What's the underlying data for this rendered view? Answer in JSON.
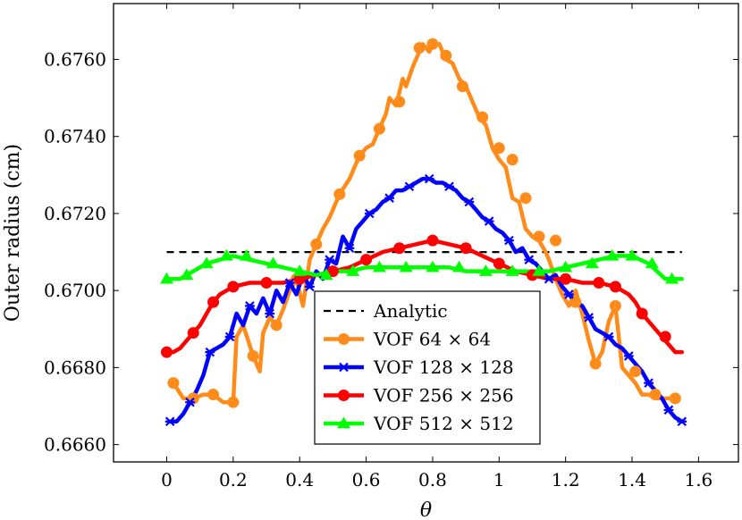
{
  "chart_data": {
    "type": "line",
    "title": "",
    "xlabel": "θ",
    "ylabel": "Outer radius (cm)",
    "xlim": [
      -0.16,
      1.72
    ],
    "ylim": [
      0.66555,
      0.67745
    ],
    "x_ticks": [
      0,
      0.2,
      0.4,
      0.6,
      0.8,
      1,
      1.2,
      1.4,
      1.6
    ],
    "x_tick_labels": [
      "0",
      "0.2",
      "0.4",
      "0.6",
      "0.8",
      "1",
      "1.2",
      "1.4",
      "1.6"
    ],
    "y_ticks": [
      0.666,
      0.668,
      0.67,
      0.672,
      0.674,
      0.676
    ],
    "y_tick_labels": [
      "0.6660",
      "0.6680",
      "0.6700",
      "0.6720",
      "0.6740",
      "0.6760"
    ],
    "grid": false,
    "legend_position": "bottom-center",
    "series": [
      {
        "name": "Analytic",
        "color": "#000000",
        "style": "dashed",
        "marker": "none",
        "x": [
          0,
          1.55
        ],
        "y": [
          0.671,
          0.671
        ]
      },
      {
        "name": "VOF 64 × 64",
        "color": "#ff8c1a",
        "style": "solid",
        "marker": "circle",
        "x": [
          0.02,
          0.05,
          0.08,
          0.11,
          0.14,
          0.17,
          0.2,
          0.21,
          0.23,
          0.26,
          0.28,
          0.29,
          0.31,
          0.33,
          0.35,
          0.37,
          0.39,
          0.41,
          0.43,
          0.45,
          0.47,
          0.49,
          0.52,
          0.55,
          0.58,
          0.6,
          0.62,
          0.64,
          0.66,
          0.67,
          0.69,
          0.71,
          0.72,
          0.74,
          0.75,
          0.77,
          0.79,
          0.8,
          0.82,
          0.84,
          0.86,
          0.88,
          0.9,
          0.92,
          0.94,
          0.96,
          0.98,
          1.0,
          1.02,
          1.04,
          1.06,
          1.08,
          1.1,
          1.12,
          1.14,
          1.15,
          1.17,
          1.19,
          1.21,
          1.23,
          1.25,
          1.27,
          1.29,
          1.31,
          1.33,
          1.35,
          1.37,
          1.39,
          1.41,
          1.43,
          1.45,
          1.47,
          1.5,
          1.53
        ],
        "y": [
          0.6676,
          0.6672,
          0.6672,
          0.6673,
          0.6673,
          0.6671,
          0.6671,
          0.6688,
          0.6691,
          0.6683,
          0.6679,
          0.6689,
          0.6693,
          0.6691,
          0.6695,
          0.67,
          0.6703,
          0.6696,
          0.6708,
          0.6712,
          0.6716,
          0.6719,
          0.6725,
          0.6729,
          0.6735,
          0.6737,
          0.6738,
          0.6742,
          0.6746,
          0.675,
          0.6748,
          0.6755,
          0.6753,
          0.6758,
          0.676,
          0.6764,
          0.6762,
          0.6764,
          0.6764,
          0.676,
          0.6759,
          0.6755,
          0.6753,
          0.6749,
          0.6745,
          0.6743,
          0.6737,
          0.6734,
          0.6732,
          0.6724,
          0.6723,
          0.6716,
          0.6714,
          0.6713,
          0.671,
          0.6708,
          0.6703,
          0.6699,
          0.6696,
          0.67,
          0.6694,
          0.6687,
          0.6681,
          0.6684,
          0.6692,
          0.6696,
          0.668,
          0.6678,
          0.6676,
          0.6673,
          0.6673,
          0.6672,
          0.6672,
          0.6672
        ],
        "marker_x": [
          0.02,
          0.08,
          0.14,
          0.2,
          0.26,
          0.33,
          0.39,
          0.45,
          0.52,
          0.58,
          0.64,
          0.7,
          0.76,
          0.8,
          0.84,
          0.89,
          0.95,
          1.0,
          1.04,
          1.08,
          1.12,
          1.17,
          1.23,
          1.29,
          1.35,
          1.41,
          1.47,
          1.53
        ],
        "marker_y": [
          0.6676,
          0.6672,
          0.6673,
          0.6671,
          0.6683,
          0.6691,
          0.6703,
          0.6712,
          0.6725,
          0.6735,
          0.6742,
          0.6749,
          0.6763,
          0.6764,
          0.6761,
          0.6753,
          0.6745,
          0.6737,
          0.6734,
          0.6724,
          0.6714,
          0.6713,
          0.6697,
          0.6681,
          0.6696,
          0.6679,
          0.6673,
          0.6672
        ]
      },
      {
        "name": "VOF 128 × 128",
        "color": "#0000ff",
        "style": "solid",
        "marker": "star",
        "x": [
          0.01,
          0.03,
          0.05,
          0.07,
          0.09,
          0.11,
          0.13,
          0.15,
          0.17,
          0.19,
          0.21,
          0.23,
          0.25,
          0.27,
          0.29,
          0.31,
          0.33,
          0.35,
          0.37,
          0.39,
          0.41,
          0.43,
          0.45,
          0.47,
          0.49,
          0.51,
          0.53,
          0.55,
          0.57,
          0.59,
          0.61,
          0.63,
          0.65,
          0.67,
          0.69,
          0.71,
          0.73,
          0.75,
          0.77,
          0.79,
          0.81,
          0.83,
          0.85,
          0.87,
          0.89,
          0.91,
          0.93,
          0.95,
          0.97,
          0.99,
          1.01,
          1.03,
          1.05,
          1.07,
          1.09,
          1.11,
          1.13,
          1.15,
          1.17,
          1.19,
          1.21,
          1.23,
          1.25,
          1.27,
          1.29,
          1.31,
          1.33,
          1.35,
          1.37,
          1.39,
          1.41,
          1.43,
          1.45,
          1.47,
          1.49,
          1.51,
          1.53,
          1.55
        ],
        "y": [
          0.6666,
          0.6666,
          0.6668,
          0.6671,
          0.6674,
          0.6678,
          0.6684,
          0.6685,
          0.6686,
          0.6688,
          0.6694,
          0.6691,
          0.6696,
          0.6694,
          0.6698,
          0.6694,
          0.67,
          0.6697,
          0.6702,
          0.6699,
          0.6704,
          0.6701,
          0.6705,
          0.6703,
          0.6708,
          0.6707,
          0.6714,
          0.6711,
          0.6716,
          0.6718,
          0.672,
          0.6721,
          0.6723,
          0.6724,
          0.6726,
          0.6726,
          0.6727,
          0.6728,
          0.6729,
          0.6729,
          0.6728,
          0.6728,
          0.6727,
          0.6726,
          0.6724,
          0.6723,
          0.6721,
          0.6719,
          0.6718,
          0.6716,
          0.6715,
          0.6713,
          0.671,
          0.6711,
          0.6708,
          0.6707,
          0.6705,
          0.6703,
          0.6704,
          0.6701,
          0.6699,
          0.6697,
          0.6696,
          0.6693,
          0.669,
          0.6689,
          0.6688,
          0.6686,
          0.6685,
          0.6683,
          0.6681,
          0.6679,
          0.6676,
          0.6674,
          0.6672,
          0.6669,
          0.6667,
          0.6666
        ],
        "marker_x": [
          0.01,
          0.07,
          0.13,
          0.19,
          0.25,
          0.31,
          0.37,
          0.43,
          0.49,
          0.55,
          0.61,
          0.67,
          0.73,
          0.79,
          0.85,
          0.91,
          0.97,
          1.03,
          1.09,
          1.15,
          1.21,
          1.27,
          1.33,
          1.39,
          1.45,
          1.51,
          1.55
        ],
        "marker_y": [
          0.6666,
          0.6671,
          0.6684,
          0.6688,
          0.6696,
          0.6694,
          0.6702,
          0.6701,
          0.6708,
          0.6711,
          0.672,
          0.6724,
          0.6727,
          0.6729,
          0.6727,
          0.6723,
          0.6718,
          0.6713,
          0.6708,
          0.6703,
          0.6699,
          0.6693,
          0.6688,
          0.6683,
          0.6676,
          0.6669,
          0.6666
        ]
      },
      {
        "name": "VOF 256 × 256",
        "color": "#ff0000",
        "style": "solid",
        "marker": "circle",
        "x": [
          0.0,
          0.02,
          0.04,
          0.06,
          0.08,
          0.1,
          0.12,
          0.14,
          0.16,
          0.18,
          0.2,
          0.25,
          0.3,
          0.35,
          0.4,
          0.45,
          0.5,
          0.55,
          0.6,
          0.65,
          0.7,
          0.75,
          0.8,
          0.85,
          0.9,
          0.95,
          1.0,
          1.05,
          1.1,
          1.15,
          1.2,
          1.25,
          1.3,
          1.35,
          1.37,
          1.39,
          1.41,
          1.43,
          1.45,
          1.47,
          1.49,
          1.51,
          1.53,
          1.55
        ],
        "y": [
          0.6684,
          0.6684,
          0.6685,
          0.6687,
          0.6689,
          0.6691,
          0.6694,
          0.6697,
          0.6699,
          0.67,
          0.6701,
          0.6702,
          0.6702,
          0.6702,
          0.6703,
          0.6704,
          0.6705,
          0.6706,
          0.6708,
          0.671,
          0.6711,
          0.6712,
          0.6713,
          0.6712,
          0.6711,
          0.6709,
          0.6707,
          0.6705,
          0.6704,
          0.6703,
          0.6703,
          0.6702,
          0.6702,
          0.6701,
          0.67,
          0.6699,
          0.6697,
          0.6694,
          0.6692,
          0.669,
          0.6688,
          0.6686,
          0.6684,
          0.6684
        ],
        "marker_x": [
          0.0,
          0.08,
          0.14,
          0.2,
          0.3,
          0.4,
          0.5,
          0.6,
          0.7,
          0.8,
          0.9,
          1.0,
          1.1,
          1.2,
          1.3,
          1.35,
          1.43,
          1.5
        ],
        "marker_y": [
          0.6684,
          0.6689,
          0.6697,
          0.6701,
          0.6702,
          0.6703,
          0.6705,
          0.6708,
          0.6711,
          0.6713,
          0.6711,
          0.6707,
          0.6704,
          0.6703,
          0.6702,
          0.6701,
          0.6694,
          0.6688
        ]
      },
      {
        "name": "VOF 512 × 512",
        "color": "#00ff00",
        "style": "solid",
        "marker": "triangle",
        "x": [
          0.0,
          0.04,
          0.08,
          0.12,
          0.16,
          0.2,
          0.25,
          0.3,
          0.35,
          0.4,
          0.45,
          0.5,
          0.55,
          0.6,
          0.65,
          0.7,
          0.75,
          0.8,
          0.85,
          0.9,
          0.95,
          1.0,
          1.05,
          1.1,
          1.15,
          1.2,
          1.25,
          1.3,
          1.35,
          1.4,
          1.45,
          1.5,
          1.55
        ],
        "y": [
          0.6703,
          0.6703,
          0.6705,
          0.6707,
          0.6708,
          0.6709,
          0.6708,
          0.6707,
          0.6706,
          0.6705,
          0.6704,
          0.6705,
          0.6705,
          0.6706,
          0.6706,
          0.6706,
          0.6706,
          0.6706,
          0.6706,
          0.6705,
          0.6705,
          0.6705,
          0.6705,
          0.6705,
          0.6705,
          0.6706,
          0.6707,
          0.6708,
          0.6709,
          0.6709,
          0.6707,
          0.6703,
          0.6703
        ],
        "marker_x": [
          0.0,
          0.06,
          0.12,
          0.18,
          0.24,
          0.32,
          0.4,
          0.48,
          0.56,
          0.64,
          0.72,
          0.8,
          0.88,
          0.96,
          1.04,
          1.12,
          1.2,
          1.28,
          1.34,
          1.4,
          1.46,
          1.52
        ],
        "marker_y": [
          0.6703,
          0.6704,
          0.6707,
          0.6709,
          0.6709,
          0.6707,
          0.6705,
          0.6704,
          0.6705,
          0.6706,
          0.6706,
          0.6706,
          0.6706,
          0.6705,
          0.6705,
          0.6705,
          0.6706,
          0.6707,
          0.6709,
          0.6709,
          0.6707,
          0.6703
        ]
      }
    ]
  }
}
